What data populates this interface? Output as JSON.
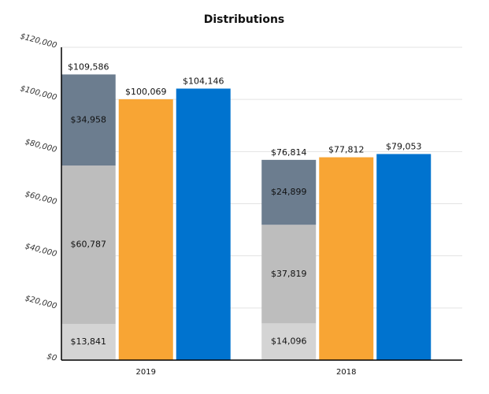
{
  "chart_data": {
    "type": "bar",
    "title": "Distributions",
    "categories": [
      "2019",
      "2018"
    ],
    "series": [
      {
        "color": "#d4d4d4",
        "stack": "a",
        "values": [
          13841,
          14096
        ],
        "value_labels": [
          "$13,841",
          "$14,096"
        ]
      },
      {
        "color": "#bdbdbd",
        "stack": "a",
        "values": [
          60787,
          37819
        ],
        "value_labels": [
          "$60,787",
          "$37,819"
        ]
      },
      {
        "color": "#6c7d8f",
        "stack": "a",
        "values": [
          34958,
          24899
        ],
        "value_labels": [
          "$34,958",
          "$24,899"
        ]
      },
      {
        "color": "#f8a534",
        "values": [
          100069,
          77812
        ],
        "value_labels": [
          "$100,069",
          "$77,812"
        ]
      },
      {
        "color": "#0073cf",
        "values": [
          104146,
          79053
        ],
        "value_labels": [
          "$104,146",
          "$79,053"
        ]
      }
    ],
    "stack_totals": {
      "values": [
        109586,
        76814
      ],
      "value_labels": [
        "$109,586",
        "$76,814"
      ]
    },
    "ylim": [
      0,
      120000
    ],
    "yticks": [
      {
        "value": 0,
        "label": "$0"
      },
      {
        "value": 20000,
        "label": "$20,000"
      },
      {
        "value": 40000,
        "label": "$40,000"
      },
      {
        "value": 60000,
        "label": "$60,000"
      },
      {
        "value": 80000,
        "label": "$80,000"
      },
      {
        "value": 100000,
        "label": "$100,000"
      },
      {
        "value": 120000,
        "label": "$120,000"
      }
    ],
    "grid": true
  }
}
